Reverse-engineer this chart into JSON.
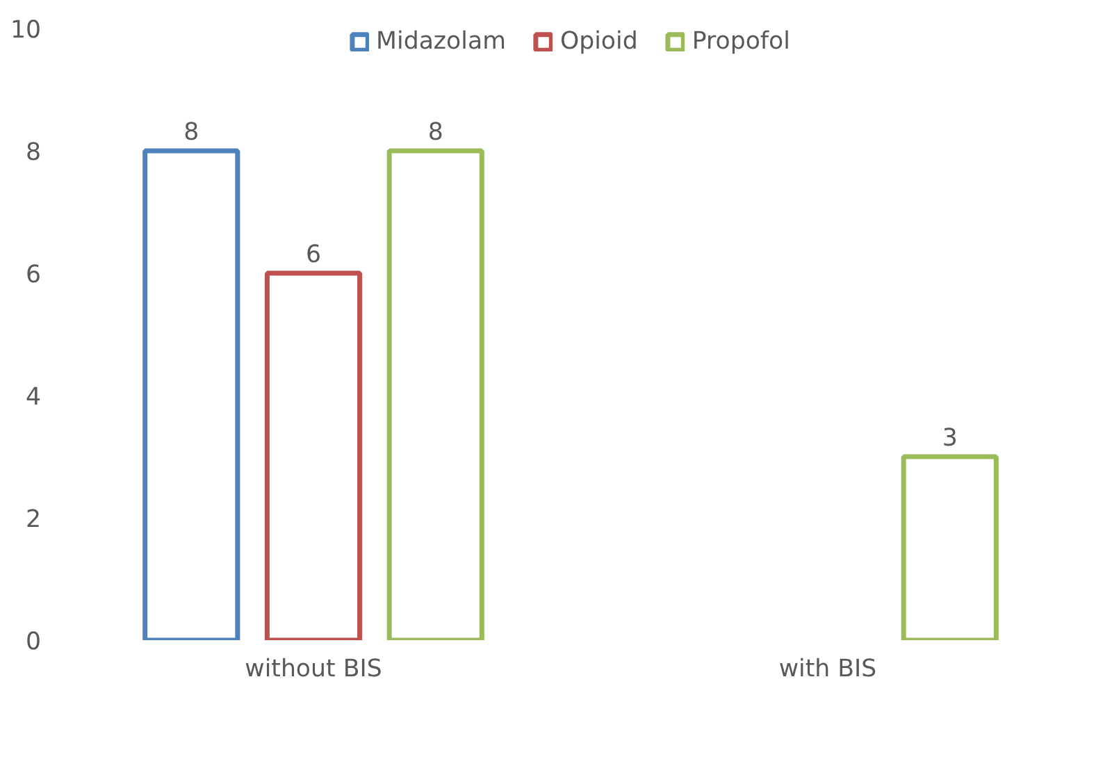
{
  "chart_data": {
    "type": "bar",
    "categories": [
      "without BIS",
      "with BIS"
    ],
    "series": [
      {
        "name": "Midazolam",
        "color": "#4f81bd",
        "values": [
          8,
          null
        ]
      },
      {
        "name": "Opioid",
        "color": "#c0504d",
        "values": [
          6,
          null
        ]
      },
      {
        "name": "Propofol",
        "color": "#9bbb59",
        "values": [
          8,
          3
        ]
      }
    ],
    "ylim": [
      0,
      10
    ],
    "yticks": [
      0,
      2,
      4,
      6,
      8,
      10
    ],
    "grid": false,
    "legend": "top",
    "data_labels": true
  }
}
